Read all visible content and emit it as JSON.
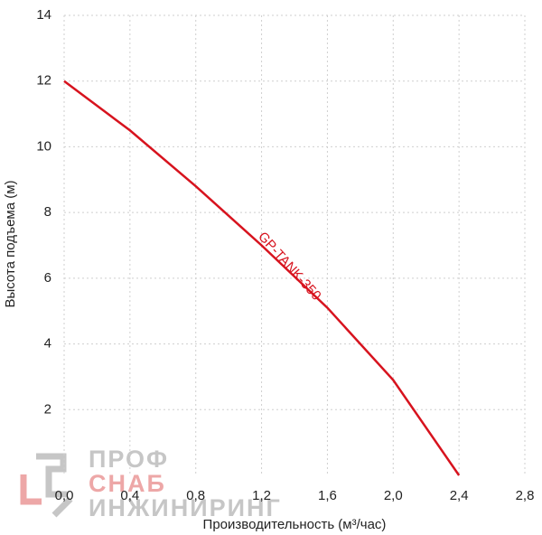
{
  "chart_data": {
    "type": "line",
    "x_label": "Производительность (м³/час)",
    "y_label": "Высота подъема (м)",
    "x": [
      0,
      0.4,
      0.8,
      1.2,
      1.6,
      2.0,
      2.4
    ],
    "series": [
      {
        "name": "GP-TANK-350",
        "color": "#d7131e",
        "values": [
          12,
          10.5,
          8.8,
          7.0,
          5.1,
          2.9,
          0
        ]
      }
    ],
    "xlim": [
      0,
      2.8
    ],
    "xticks": [
      {
        "value": 0,
        "label": "0,0"
      },
      {
        "value": 0.4,
        "label": "0,4"
      },
      {
        "value": 0.8,
        "label": "0,8"
      },
      {
        "value": 1.2,
        "label": "1,2"
      },
      {
        "value": 1.6,
        "label": "1,6"
      },
      {
        "value": 2.0,
        "label": "2,0"
      },
      {
        "value": 2.4,
        "label": "2,4"
      },
      {
        "value": 2.8,
        "label": "2,8"
      }
    ],
    "ylim": [
      0,
      14
    ],
    "yticks": [
      2,
      4,
      6,
      8,
      10,
      12,
      14
    ],
    "grid": true
  },
  "watermark": {
    "line1": "ПРОФ",
    "line2": "СНАБ",
    "line3": "ИНЖИНИРИНГ"
  }
}
